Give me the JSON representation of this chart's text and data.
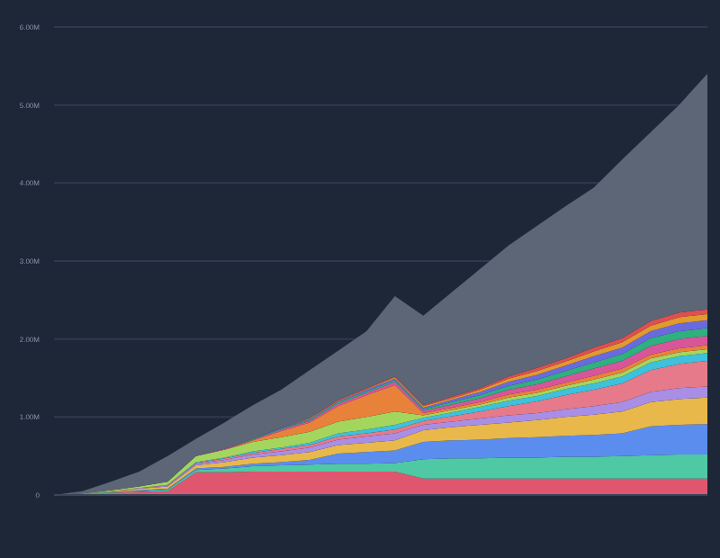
{
  "chart_data": {
    "type": "area",
    "stacked": true,
    "grid": "y",
    "categories": [
      null,
      null,
      null,
      null,
      null,
      null,
      null,
      null,
      null,
      null,
      null,
      null,
      null,
      null,
      null,
      null,
      null,
      null,
      null,
      null,
      null,
      null,
      null,
      null
    ],
    "ylim": [
      0,
      6
    ],
    "yticks": [
      {
        "value": 0,
        "label": "0"
      },
      {
        "value": 1,
        "label": "1.00M"
      },
      {
        "value": 2,
        "label": "2.00M"
      },
      {
        "value": 3,
        "label": "3.00M"
      },
      {
        "value": 4,
        "label": "4.00M"
      },
      {
        "value": 5,
        "label": "5.00M"
      },
      {
        "value": 6,
        "label": "6.00M"
      }
    ],
    "series": [
      {
        "color": "#e0566f",
        "values": [
          0,
          0.02,
          0.03,
          0.04,
          0.05,
          0.29,
          0.29,
          0.3,
          0.3,
          0.3,
          0.3,
          0.3,
          0.3,
          0.21,
          0.21,
          0.21,
          0.21,
          0.21,
          0.21,
          0.21,
          0.21,
          0.21,
          0.21,
          0.21
        ]
      },
      {
        "color": "#4fc9a4",
        "values": [
          0,
          0,
          0.01,
          0.01,
          0.02,
          0.03,
          0.05,
          0.07,
          0.08,
          0.09,
          0.1,
          0.1,
          0.11,
          0.25,
          0.26,
          0.26,
          0.27,
          0.27,
          0.28,
          0.28,
          0.29,
          0.3,
          0.31,
          0.31
        ]
      },
      {
        "color": "#5b8def",
        "values": [
          0,
          0,
          0,
          0.01,
          0.01,
          0.02,
          0.02,
          0.03,
          0.04,
          0.06,
          0.13,
          0.15,
          0.16,
          0.22,
          0.23,
          0.24,
          0.25,
          0.26,
          0.27,
          0.28,
          0.29,
          0.37,
          0.38,
          0.39
        ]
      },
      {
        "color": "#e8b84a",
        "values": [
          0,
          0,
          0.01,
          0.02,
          0.03,
          0.04,
          0.06,
          0.08,
          0.09,
          0.1,
          0.11,
          0.12,
          0.13,
          0.15,
          0.17,
          0.19,
          0.2,
          0.22,
          0.24,
          0.26,
          0.28,
          0.31,
          0.33,
          0.34
        ]
      },
      {
        "color": "#a98ee6",
        "values": [
          0,
          0,
          0,
          0.01,
          0.01,
          0.02,
          0.03,
          0.04,
          0.05,
          0.06,
          0.07,
          0.08,
          0.09,
          0.07,
          0.07,
          0.08,
          0.09,
          0.09,
          0.1,
          0.11,
          0.12,
          0.13,
          0.14,
          0.14
        ]
      },
      {
        "color": "#e67a8a",
        "values": [
          0,
          0,
          0,
          0,
          0.01,
          0.01,
          0.02,
          0.02,
          0.03,
          0.03,
          0.04,
          0.04,
          0.05,
          0.05,
          0.07,
          0.09,
          0.12,
          0.15,
          0.18,
          0.21,
          0.24,
          0.28,
          0.31,
          0.33
        ]
      },
      {
        "color": "#3ec1dc",
        "values": [
          0,
          0,
          0,
          0,
          0,
          0.01,
          0.01,
          0.02,
          0.02,
          0.03,
          0.04,
          0.05,
          0.06,
          0.04,
          0.05,
          0.06,
          0.07,
          0.07,
          0.08,
          0.08,
          0.09,
          0.1,
          0.1,
          0.1
        ]
      },
      {
        "color": "#a4d65e",
        "values": [
          0,
          0,
          0.01,
          0.02,
          0.04,
          0.08,
          0.1,
          0.12,
          0.13,
          0.14,
          0.15,
          0.16,
          0.17,
          0.03,
          0.03,
          0.03,
          0.04,
          0.04,
          0.04,
          0.05,
          0.05,
          0.05,
          0.05,
          0.05
        ]
      },
      {
        "color": "#e8823a",
        "values": [
          0,
          0,
          0,
          0,
          0,
          0,
          0,
          0.02,
          0.08,
          0.12,
          0.2,
          0.28,
          0.34,
          0.03,
          0.03,
          0.03,
          0.04,
          0.04,
          0.04,
          0.05,
          0.05,
          0.05,
          0.05,
          0.05
        ]
      },
      {
        "color": "#d9559a",
        "values": [
          0,
          0,
          0,
          0,
          0,
          0,
          0.01,
          0.01,
          0.02,
          0.02,
          0.03,
          0.03,
          0.04,
          0.03,
          0.04,
          0.05,
          0.06,
          0.07,
          0.08,
          0.09,
          0.1,
          0.11,
          0.12,
          0.12
        ]
      },
      {
        "color": "#2fb07f",
        "values": [
          0,
          0,
          0,
          0,
          0,
          0,
          0,
          0.01,
          0.01,
          0.01,
          0.02,
          0.02,
          0.02,
          0.02,
          0.03,
          0.04,
          0.05,
          0.06,
          0.07,
          0.08,
          0.09,
          0.1,
          0.1,
          0.1
        ]
      },
      {
        "color": "#6a6ae0",
        "values": [
          0,
          0,
          0,
          0,
          0,
          0,
          0,
          0,
          0.01,
          0.01,
          0.01,
          0.02,
          0.02,
          0.02,
          0.03,
          0.04,
          0.05,
          0.06,
          0.07,
          0.08,
          0.08,
          0.09,
          0.1,
          0.1
        ]
      },
      {
        "color": "#e09a2e",
        "values": [
          0,
          0,
          0,
          0,
          0,
          0,
          0,
          0,
          0,
          0.01,
          0.01,
          0.01,
          0.02,
          0.02,
          0.02,
          0.03,
          0.04,
          0.05,
          0.05,
          0.06,
          0.07,
          0.07,
          0.08,
          0.08
        ]
      },
      {
        "color": "#e04f4f",
        "values": [
          0,
          0,
          0,
          0,
          0,
          0,
          0,
          0,
          0,
          0,
          0.01,
          0.01,
          0.01,
          0.01,
          0.02,
          0.02,
          0.03,
          0.04,
          0.04,
          0.05,
          0.05,
          0.06,
          0.06,
          0.06
        ]
      },
      {
        "color": "#5c6677",
        "values": [
          0,
          0.03,
          0.11,
          0.19,
          0.33,
          0.22,
          0.34,
          0.43,
          0.49,
          0.62,
          0.63,
          0.73,
          1.03,
          1.15,
          1.34,
          1.53,
          1.68,
          1.82,
          1.95,
          2.05,
          2.29,
          2.42,
          2.66,
          3.02
        ]
      }
    ]
  }
}
